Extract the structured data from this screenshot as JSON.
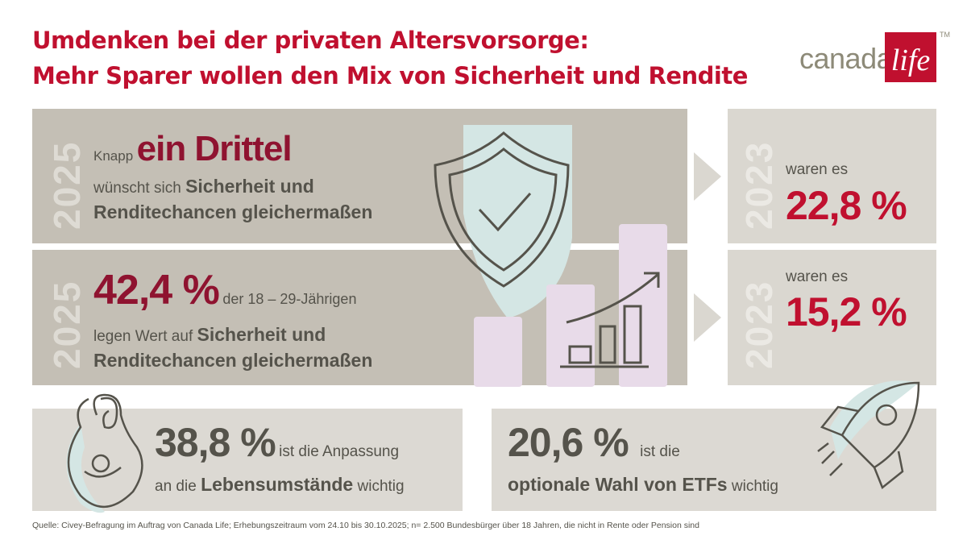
{
  "title": {
    "line1": "Umdenken bei der privaten Altersvorsorge:",
    "line2": "Mehr Sparer wollen den Mix von Sicherheit und Rendite"
  },
  "logo": {
    "canada": "canada",
    "life": "life",
    "tm": "TM"
  },
  "row1": {
    "year": "2025",
    "prefix": "Knapp",
    "highlight": "ein Drittel",
    "line2_normal": "wünscht sich",
    "line2_bold": "Sicherheit und",
    "line3_bold": "Renditechancen gleichermaßen",
    "compare_year": "2023",
    "compare_label": "waren es",
    "compare_value": "22,8 %"
  },
  "row2": {
    "year": "2025",
    "highlight": "42,4 %",
    "suffix": "der 18 – 29-Jährigen",
    "line2_normal": "legen Wert auf",
    "line2_bold": "Sicherheit und",
    "line3_bold": "Renditechancen gleichermaßen",
    "compare_year": "2023",
    "compare_label": "waren es",
    "compare_value": "15,2 %"
  },
  "bottom_left": {
    "value": "38,8 %",
    "text1": "ist die Anpassung",
    "text2_normal": "an die",
    "text2_bold": "Lebensumstände",
    "text2_end": "wichtig"
  },
  "bottom_right": {
    "value": "20,6 %",
    "text1": "ist die",
    "text2_bold": "optionale Wahl von ETFs",
    "text2_end": "wichtig"
  },
  "source": "Quelle: Civey-Befragung im Auftrag von Canada Life; Erhebungszeitraum vom 24.10 bis 30.10.2025; n= 2.500 Bundesbürger über 18 Jahren, die nicht in Rente oder Pension sind",
  "colors": {
    "accent_red": "#c0102f",
    "dark_red": "#8f1330",
    "panel": "#c4bfb5",
    "panel_light": "#dad7d0",
    "icon_teal": "#d4e6e4",
    "icon_lilac": "#e8dbe9"
  }
}
